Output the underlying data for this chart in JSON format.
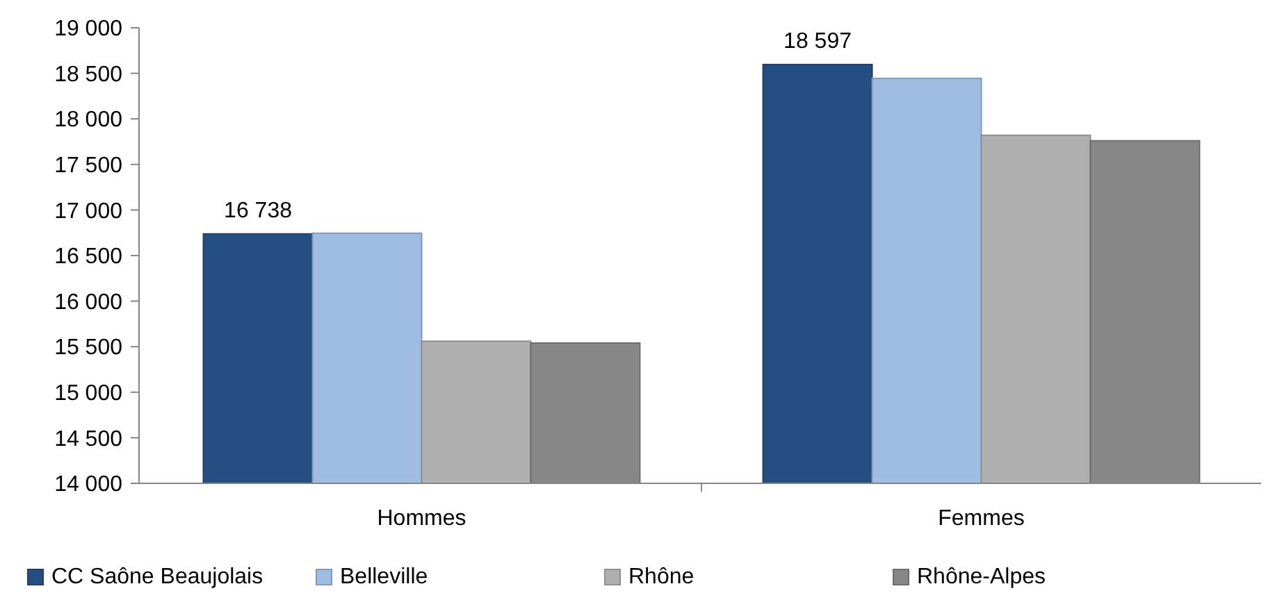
{
  "chart_data": {
    "type": "bar",
    "categories": [
      "Hommes",
      "Femmes"
    ],
    "series": [
      {
        "name": "CC Saône Beaujolais",
        "color": "#254f83",
        "values": [
          16738,
          18597
        ],
        "value_labels": [
          "16 738",
          "18 597"
        ]
      },
      {
        "name": "Belleville",
        "color": "#9fbde3",
        "values": [
          16745,
          18445
        ]
      },
      {
        "name": "Rhône",
        "color": "#b0b0b0",
        "values": [
          15560,
          17820
        ]
      },
      {
        "name": "Rhône-Alpes",
        "color": "#878787",
        "values": [
          15540,
          17760
        ]
      }
    ],
    "ylim": [
      14000,
      19000
    ],
    "yticks": [
      {
        "value": 14000,
        "label": "14 000"
      },
      {
        "value": 14500,
        "label": "14 500"
      },
      {
        "value": 15000,
        "label": "15 000"
      },
      {
        "value": 15500,
        "label": "15 500"
      },
      {
        "value": 16000,
        "label": "16 000"
      },
      {
        "value": 16500,
        "label": "16 500"
      },
      {
        "value": 17000,
        "label": "17 000"
      },
      {
        "value": 17500,
        "label": "17 500"
      },
      {
        "value": 18000,
        "label": "18 000"
      },
      {
        "value": 18500,
        "label": "18 500"
      },
      {
        "value": 19000,
        "label": "19 000"
      }
    ],
    "grid": false,
    "legend": "bottom"
  }
}
